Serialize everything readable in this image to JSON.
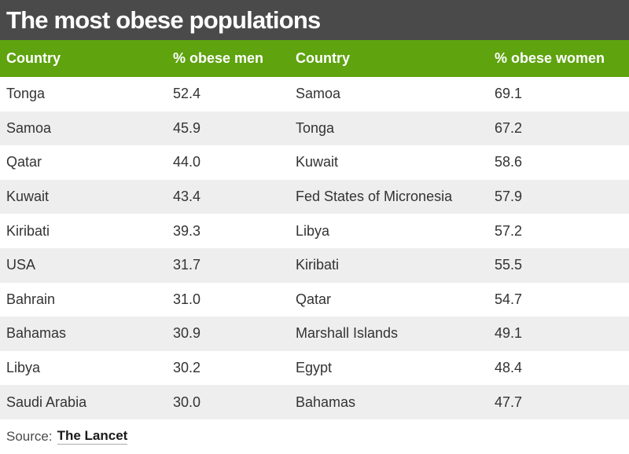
{
  "title": "The most obese populations",
  "colors": {
    "title_bg": "#4a4a4a",
    "header_bg": "#5fa30f",
    "row_alt": "#eeeeee"
  },
  "chart_data": {
    "type": "table",
    "title": "The most obese populations",
    "columns": [
      "Country",
      "% obese men",
      "Country",
      "% obese women"
    ],
    "men": [
      {
        "country": "Tonga",
        "value": "52.4"
      },
      {
        "country": "Samoa",
        "value": "45.9"
      },
      {
        "country": "Qatar",
        "value": "44.0"
      },
      {
        "country": "Kuwait",
        "value": "43.4"
      },
      {
        "country": "Kiribati",
        "value": "39.3"
      },
      {
        "country": "USA",
        "value": "31.7"
      },
      {
        "country": "Bahrain",
        "value": "31.0"
      },
      {
        "country": "Bahamas",
        "value": "30.9"
      },
      {
        "country": "Libya",
        "value": "30.2"
      },
      {
        "country": "Saudi Arabia",
        "value": "30.0"
      }
    ],
    "women": [
      {
        "country": "Samoa",
        "value": "69.1"
      },
      {
        "country": "Tonga",
        "value": "67.2"
      },
      {
        "country": "Kuwait",
        "value": "58.6"
      },
      {
        "country": "Fed States of Micronesia",
        "value": "57.9"
      },
      {
        "country": "Libya",
        "value": "57.2"
      },
      {
        "country": "Kiribati",
        "value": "55.5"
      },
      {
        "country": "Qatar",
        "value": "54.7"
      },
      {
        "country": "Marshall Islands",
        "value": "49.1"
      },
      {
        "country": "Egypt",
        "value": "48.4"
      },
      {
        "country": "Bahamas",
        "value": "47.7"
      }
    ]
  },
  "source": {
    "label": "Source:",
    "link": "The Lancet"
  }
}
